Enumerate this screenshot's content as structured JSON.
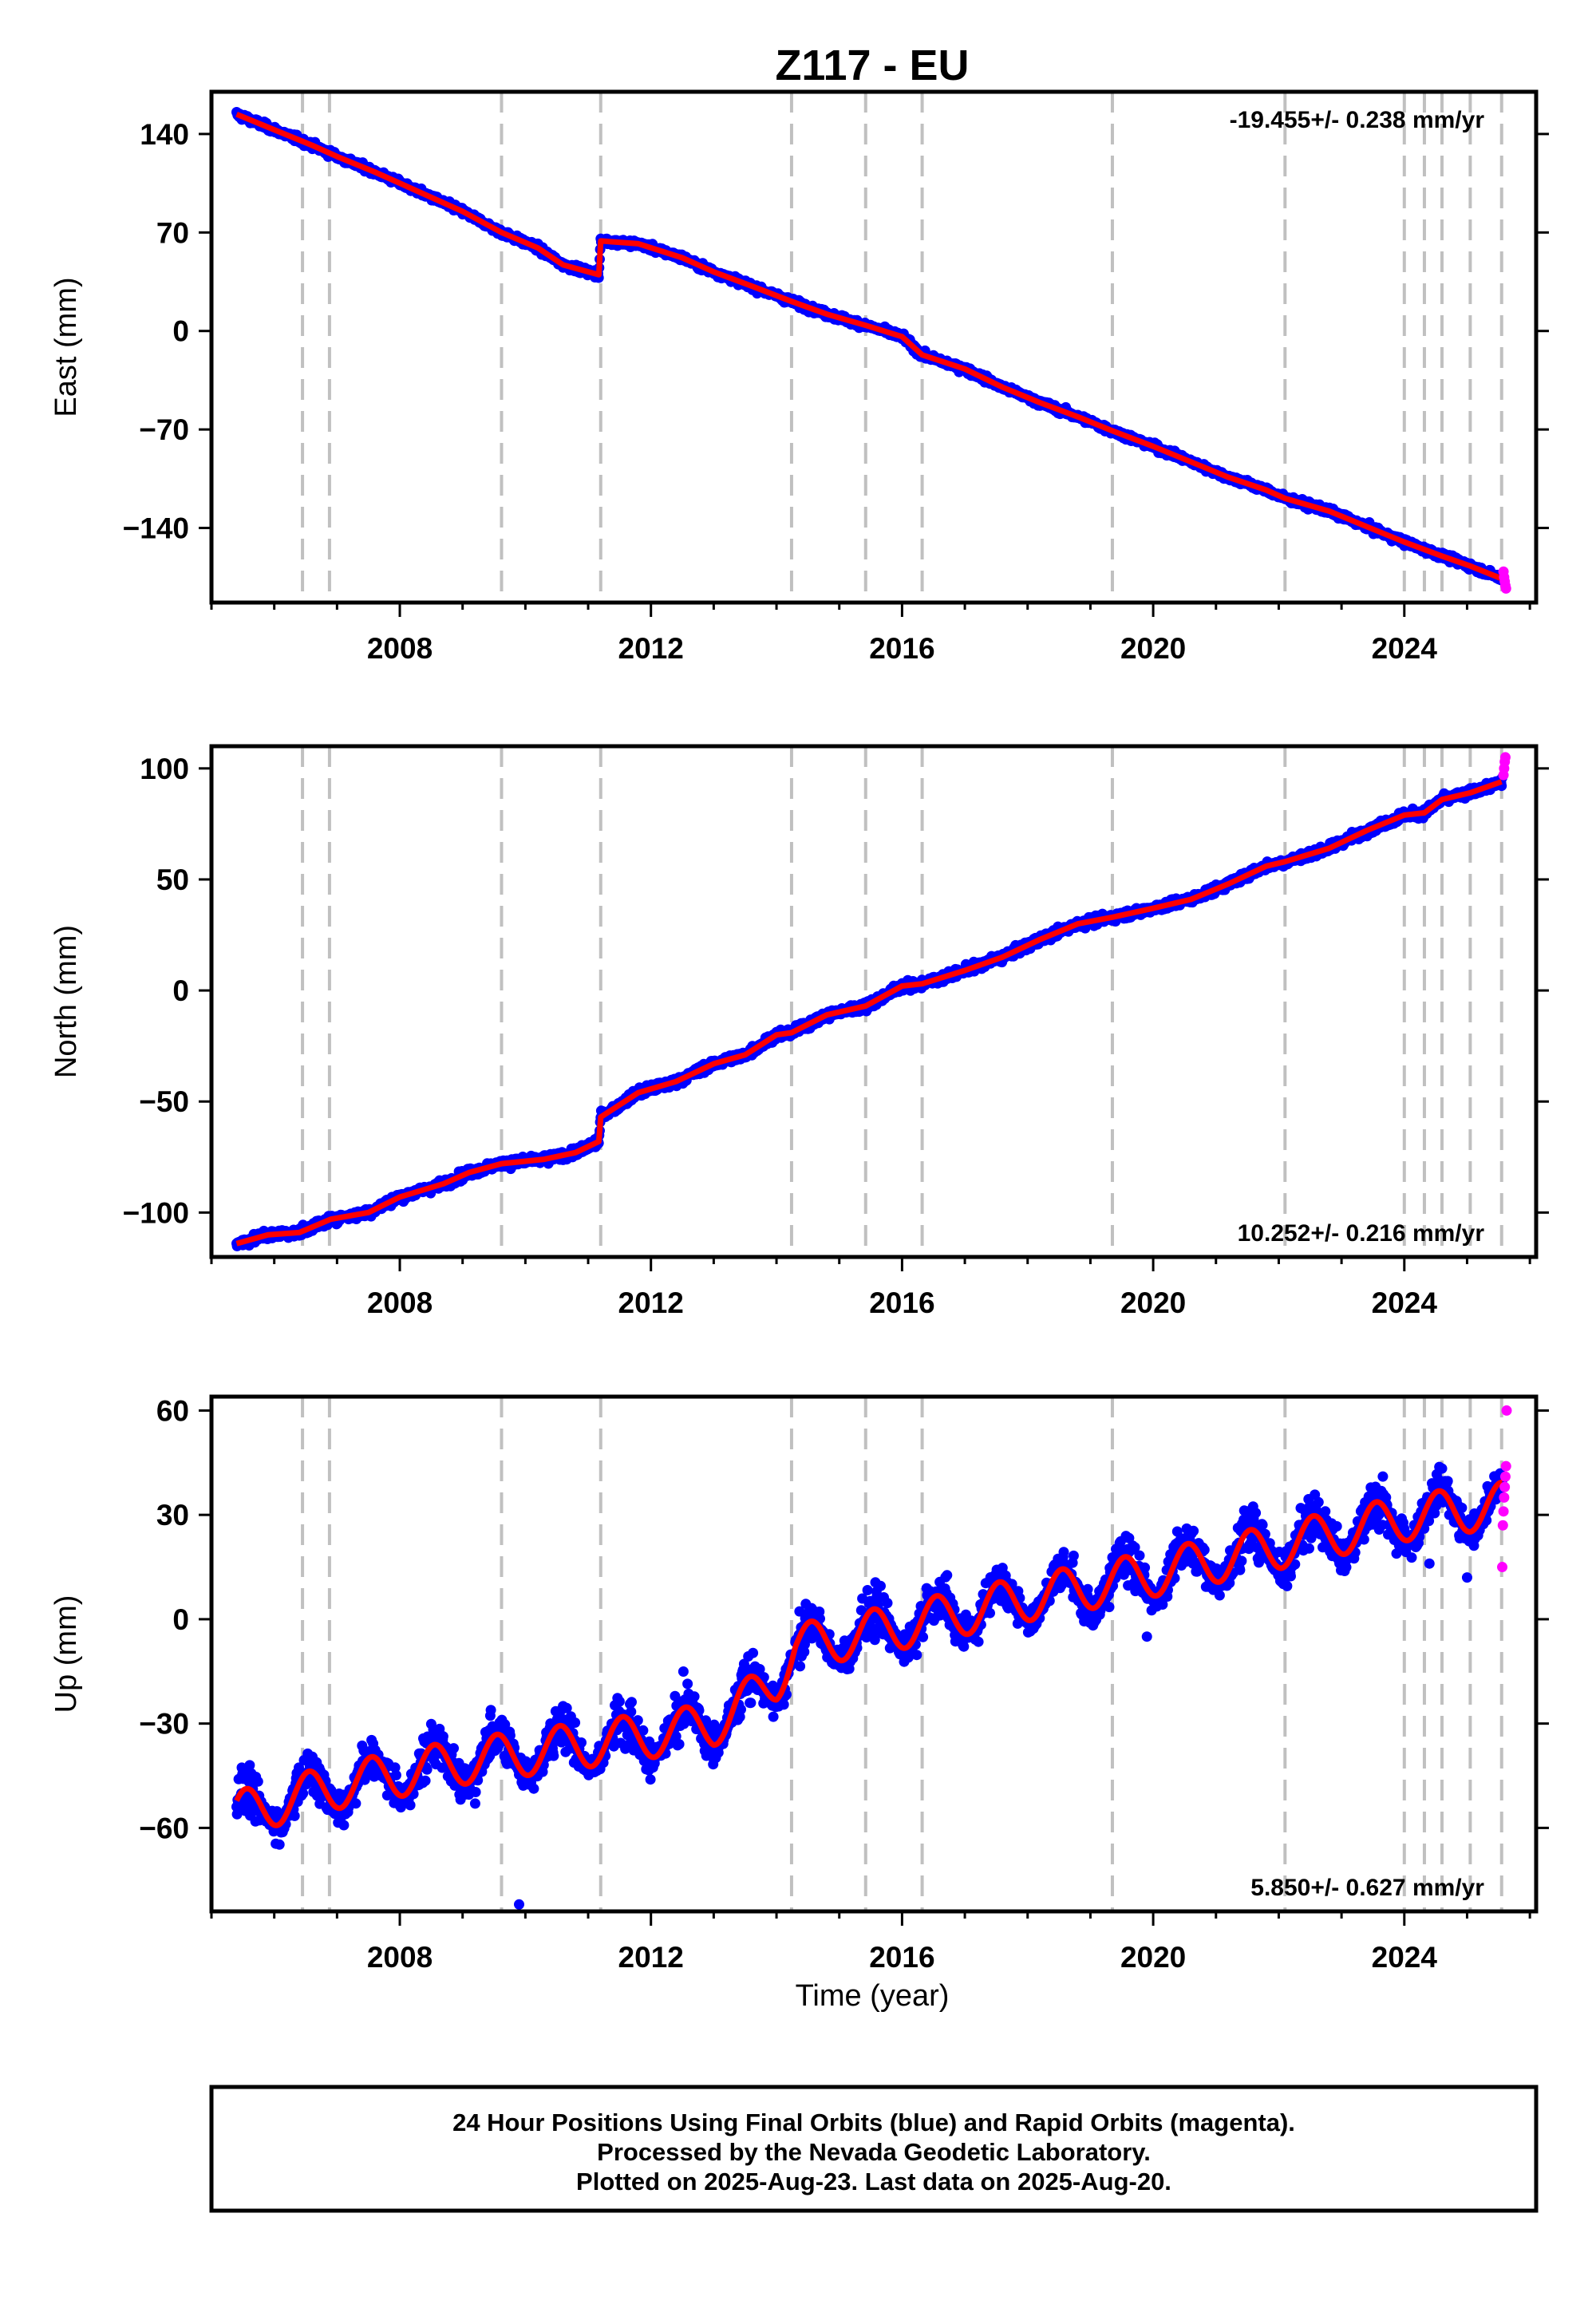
{
  "title": "Z117 - EU",
  "x_axis_label": "Time (year)",
  "footer": {
    "line1": "24 Hour Positions Using Final Orbits (blue) and Rapid Orbits (magenta).",
    "line2": "Processed by the Nevada Geodetic Laboratory.",
    "line3": "Plotted on 2025-Aug-23. Last data on 2025-Aug-20."
  },
  "colors": {
    "final_orbits": "#0000ff",
    "rapid_orbits": "#ff00ff",
    "model": "#ff0000",
    "event_lines": "#c0c0c0"
  },
  "chart_data": [
    {
      "type": "scatter",
      "name": "east",
      "ylabel": "East (mm)",
      "rate_label": "-19.455+/- 0.238 mm/yr",
      "rate_position": "top-right",
      "xlim": [
        2005.0,
        2026.1
      ],
      "ylim": [
        -193,
        170
      ],
      "xticks": [
        2008,
        2012,
        2016,
        2020,
        2024
      ],
      "yticks": [
        140,
        70,
        0,
        -70,
        -140
      ],
      "ytick_labels": [
        "140",
        "70",
        "0",
        "−70",
        "−140"
      ],
      "event_lines": [
        2006.45,
        2006.88,
        2009.62,
        2011.2,
        2014.24,
        2015.42,
        2016.32,
        2019.35,
        2022.1,
        2024.0,
        2024.32,
        2024.6,
        2025.05,
        2025.55
      ],
      "model": {
        "type": "line",
        "points": [
          [
            2005.4,
            154
          ],
          [
            2006.0,
            143
          ],
          [
            2006.6,
            132
          ],
          [
            2007.0,
            124
          ],
          [
            2007.6,
            113
          ],
          [
            2008.0,
            105
          ],
          [
            2008.6,
            93
          ],
          [
            2009.0,
            85
          ],
          [
            2009.62,
            70
          ],
          [
            2010.2,
            59
          ],
          [
            2010.6,
            47
          ],
          [
            2011.17,
            40
          ],
          [
            2011.2,
            64
          ],
          [
            2011.8,
            62
          ],
          [
            2012.5,
            52
          ],
          [
            2013.0,
            42
          ],
          [
            2013.6,
            32
          ],
          [
            2014.24,
            21
          ],
          [
            2014.8,
            12
          ],
          [
            2015.42,
            4
          ],
          [
            2016.0,
            -4
          ],
          [
            2016.32,
            -17
          ],
          [
            2017.0,
            -27
          ],
          [
            2017.6,
            -40
          ],
          [
            2018.2,
            -51
          ],
          [
            2018.8,
            -61
          ],
          [
            2019.35,
            -71
          ],
          [
            2020.0,
            -82
          ],
          [
            2020.6,
            -93
          ],
          [
            2021.2,
            -104
          ],
          [
            2021.8,
            -113
          ],
          [
            2022.1,
            -119
          ],
          [
            2022.8,
            -128
          ],
          [
            2023.4,
            -139
          ],
          [
            2024.0,
            -150
          ],
          [
            2024.6,
            -160
          ],
          [
            2025.05,
            -167
          ],
          [
            2025.55,
            -176
          ]
        ]
      },
      "scatter": {
        "noise": 3
      },
      "rapid_points": [
        [
          2025.58,
          -171
        ],
        [
          2025.59,
          -175
        ],
        [
          2025.6,
          -178
        ],
        [
          2025.61,
          -181
        ],
        [
          2025.62,
          -183
        ]
      ]
    },
    {
      "type": "scatter",
      "name": "north",
      "ylabel": "North (mm)",
      "rate_label": "10.252+/- 0.216 mm/yr",
      "rate_position": "bottom-right",
      "xlim": [
        2005.0,
        2026.1
      ],
      "ylim": [
        -120,
        110
      ],
      "xticks": [
        2008,
        2012,
        2016,
        2020,
        2024
      ],
      "yticks": [
        100,
        50,
        0,
        -50,
        -100
      ],
      "ytick_labels": [
        "100",
        "50",
        "0",
        "−50",
        "−100"
      ],
      "event_lines": [
        2006.45,
        2006.88,
        2009.62,
        2011.2,
        2014.24,
        2015.42,
        2016.32,
        2019.35,
        2022.1,
        2024.0,
        2024.32,
        2024.6,
        2025.05,
        2025.55
      ],
      "model": {
        "type": "line",
        "points": [
          [
            2005.4,
            -114
          ],
          [
            2005.9,
            -110
          ],
          [
            2006.4,
            -109
          ],
          [
            2006.9,
            -103
          ],
          [
            2007.5,
            -100
          ],
          [
            2008.0,
            -93
          ],
          [
            2008.7,
            -87
          ],
          [
            2009.1,
            -82
          ],
          [
            2009.62,
            -78
          ],
          [
            2010.3,
            -76
          ],
          [
            2010.8,
            -73
          ],
          [
            2011.17,
            -68
          ],
          [
            2011.2,
            -57
          ],
          [
            2011.8,
            -46
          ],
          [
            2012.4,
            -41
          ],
          [
            2013.0,
            -33
          ],
          [
            2013.5,
            -29
          ],
          [
            2014.0,
            -20
          ],
          [
            2014.24,
            -19
          ],
          [
            2014.8,
            -11
          ],
          [
            2015.42,
            -7
          ],
          [
            2016.0,
            2
          ],
          [
            2016.32,
            3
          ],
          [
            2017.0,
            9
          ],
          [
            2017.6,
            15
          ],
          [
            2018.2,
            23
          ],
          [
            2018.8,
            30
          ],
          [
            2019.35,
            33
          ],
          [
            2020.0,
            37
          ],
          [
            2020.6,
            41
          ],
          [
            2021.2,
            48
          ],
          [
            2021.8,
            56
          ],
          [
            2022.1,
            58
          ],
          [
            2022.8,
            64
          ],
          [
            2023.4,
            72
          ],
          [
            2024.0,
            79
          ],
          [
            2024.32,
            80
          ],
          [
            2024.6,
            86
          ],
          [
            2025.05,
            89
          ],
          [
            2025.55,
            94
          ]
        ]
      },
      "scatter": {
        "noise": 2.5
      },
      "rapid_points": [
        [
          2025.58,
          97
        ],
        [
          2025.59,
          100
        ],
        [
          2025.6,
          103
        ],
        [
          2025.61,
          105
        ]
      ]
    },
    {
      "type": "scatter",
      "name": "up",
      "ylabel": "Up (mm)",
      "rate_label": "5.850+/- 0.627 mm/yr",
      "rate_position": "bottom-right",
      "xlim": [
        2005.0,
        2026.1
      ],
      "ylim": [
        -84,
        64
      ],
      "xticks": [
        2008,
        2012,
        2016,
        2020,
        2024
      ],
      "yticks": [
        60,
        30,
        0,
        -30,
        -60
      ],
      "ytick_labels": [
        "60",
        "30",
        "0",
        "−30",
        "−60"
      ],
      "event_lines": [
        2006.45,
        2006.88,
        2009.62,
        2011.2,
        2014.24,
        2015.42,
        2016.32,
        2019.35,
        2022.1,
        2024.0,
        2024.32,
        2024.6,
        2025.05,
        2025.55
      ],
      "model": {
        "type": "seasonal",
        "trend": [
          [
            2005.4,
            -56
          ],
          [
            2007.0,
            -48
          ],
          [
            2009.0,
            -41
          ],
          [
            2011.0,
            -36
          ],
          [
            2012.5,
            -32
          ],
          [
            2013.0,
            -30
          ],
          [
            2013.5,
            -24
          ],
          [
            2014.0,
            -17
          ],
          [
            2014.3,
            -8
          ],
          [
            2016.0,
            -2
          ],
          [
            2018.0,
            6
          ],
          [
            2020.0,
            13
          ],
          [
            2022.0,
            21
          ],
          [
            2024.0,
            29
          ],
          [
            2025.6,
            33
          ]
        ],
        "amplitude": 6.5,
        "peak_phase": 0.55
      },
      "scatter": {
        "noise": 7
      },
      "rapid_points": [
        [
          2025.56,
          15
        ],
        [
          2025.57,
          27
        ],
        [
          2025.58,
          31
        ],
        [
          2025.59,
          35
        ],
        [
          2025.6,
          38
        ],
        [
          2025.61,
          41
        ],
        [
          2025.62,
          44
        ],
        [
          2025.63,
          60
        ]
      ],
      "outliers": [
        [
          2009.9,
          -82
        ],
        [
          2009.2,
          -53
        ],
        [
          2019.9,
          -5
        ],
        [
          2024.4,
          16
        ],
        [
          2025.0,
          12
        ]
      ]
    }
  ]
}
